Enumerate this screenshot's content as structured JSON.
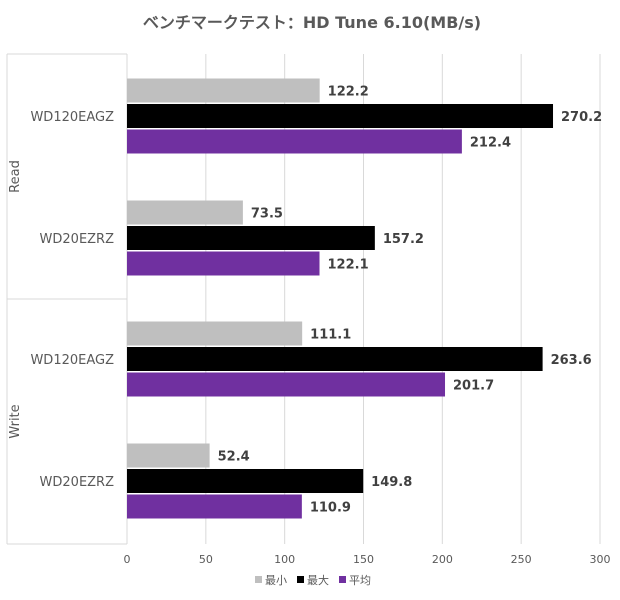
{
  "chart_data": {
    "type": "bar",
    "orientation": "horizontal",
    "title": "ベンチマークテスト：HD Tune 6.10(MB/s)",
    "xlabel": "",
    "ylabel": "",
    "xlim": [
      0,
      300
    ],
    "x_ticks": [
      "0",
      "50",
      "100",
      "150",
      "200",
      "250",
      "300"
    ],
    "grid": true,
    "legend_position": "bottom",
    "groups": [
      "Read",
      "Write"
    ],
    "categories": [
      "WD120EAGZ",
      "WD20EZRZ",
      "WD120EAGZ",
      "WD20EZRZ"
    ],
    "category_groups": [
      "Read",
      "Read",
      "Write",
      "Write"
    ],
    "series": [
      {
        "name": "最小",
        "color": "#bfbfbf",
        "values": [
          122.2,
          73.5,
          111.1,
          52.4
        ],
        "labels": [
          "122.2",
          "73.5",
          "111.1",
          "52.4"
        ]
      },
      {
        "name": "最大",
        "color": "#000000",
        "values": [
          270.2,
          157.2,
          263.6,
          149.8
        ],
        "labels": [
          "270.2",
          "157.2",
          "263.6",
          "149.8"
        ]
      },
      {
        "name": "平均",
        "color": "#7030a0",
        "values": [
          212.4,
          122.1,
          201.7,
          110.9
        ],
        "labels": [
          "212.4",
          "122.1",
          "201.7",
          "110.9"
        ]
      }
    ]
  }
}
